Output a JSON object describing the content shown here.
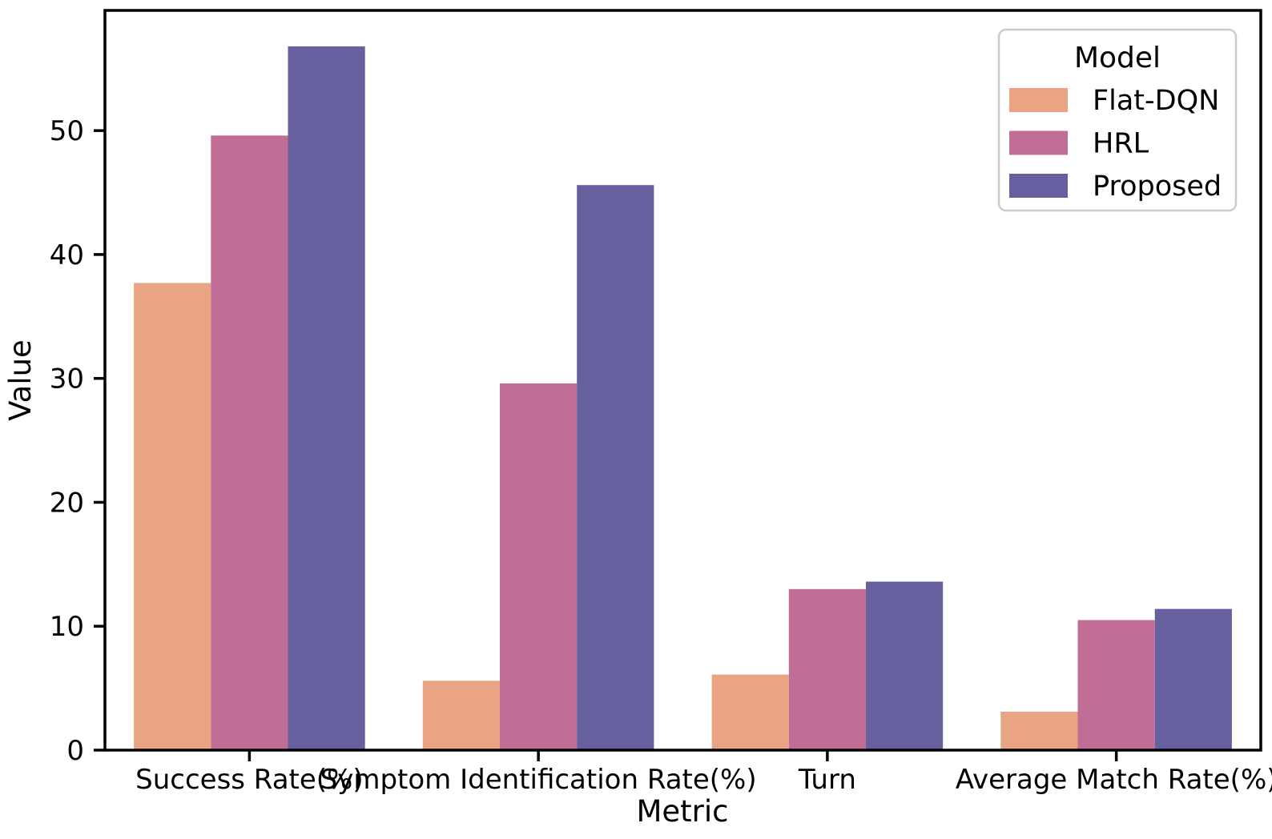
{
  "chart_data": {
    "type": "bar",
    "title": "",
    "xlabel": "Metric",
    "ylabel": "Value",
    "categories": [
      "Success Rate(%)",
      "Symptom Identification Rate(%)",
      "Turn",
      "Average Match Rate(%)"
    ],
    "series": [
      {
        "name": "Flat-DQN",
        "color": "#E9A583",
        "values": [
          37.7,
          5.6,
          6.1,
          3.1
        ]
      },
      {
        "name": "HRL",
        "color": "#C06E96",
        "values": [
          49.6,
          29.6,
          13.0,
          10.5
        ]
      },
      {
        "name": "Proposed",
        "color": "#66609F",
        "values": [
          56.8,
          45.6,
          13.6,
          11.4
        ]
      }
    ],
    "yticks": [
      0,
      10,
      20,
      30,
      40,
      50
    ],
    "ylim": [
      0,
      59.7
    ],
    "grid": false,
    "legend": {
      "title": "Model",
      "position": "upper right"
    },
    "colors": {
      "spine": "#000000",
      "legend_border": "#cccccc",
      "background": "#ffffff"
    }
  }
}
